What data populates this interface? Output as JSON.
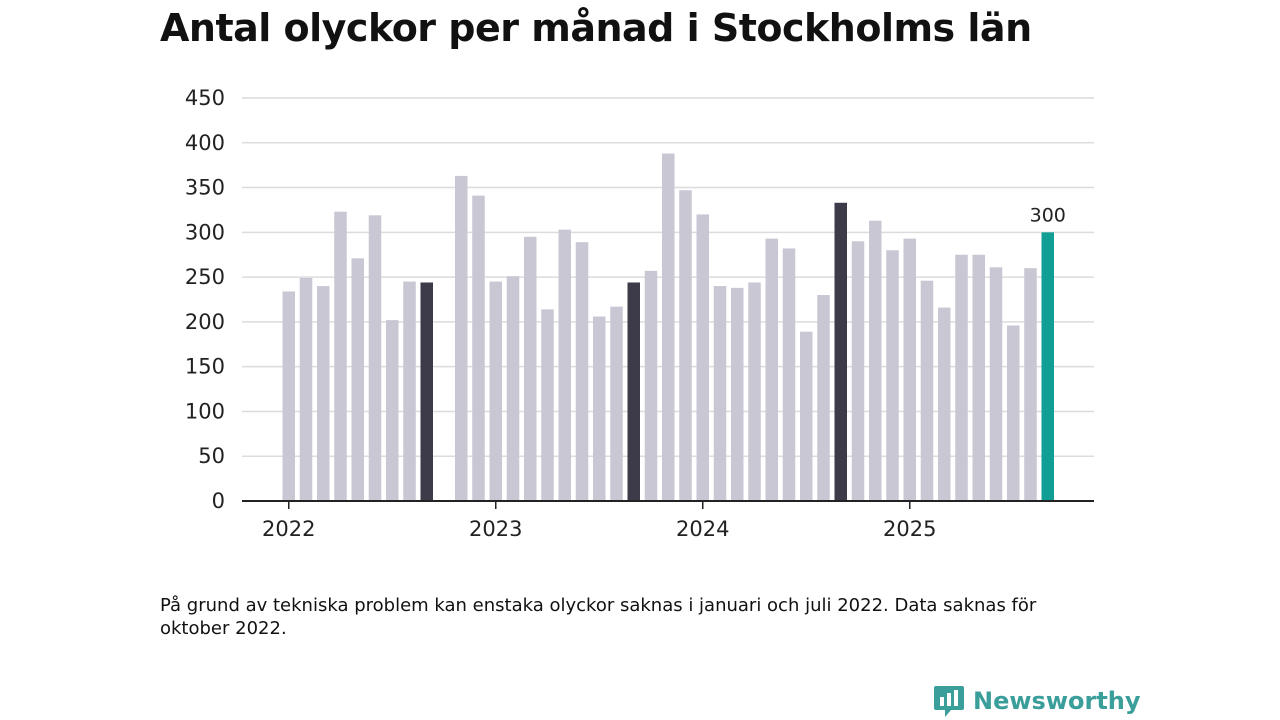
{
  "title": "Antal olyckor per månad i Stockholms län",
  "footnote": "På grund av tekniska problem kan enstaka olyckor saknas i januari och juli 2022. Data saknas för oktober 2022.",
  "brand": {
    "name": "Newsworthy",
    "icon": "newsworthy-logo-icon"
  },
  "colors": {
    "bar": "#c8c7d3",
    "highlight": "#3d3b49",
    "latest": "#119f95",
    "grid": "#dcdcdc",
    "axis": "#222222"
  },
  "chart_data": {
    "type": "bar",
    "title": "Antal olyckor per månad i Stockholms län",
    "xlabel": "",
    "ylabel": "",
    "ylim": [
      0,
      450
    ],
    "yticks": [
      0,
      50,
      100,
      150,
      200,
      250,
      300,
      350,
      400,
      450
    ],
    "grid": true,
    "x_tick_labels": [
      "2022",
      "2023",
      "2024",
      "2025"
    ],
    "start": "2022-01",
    "values": [
      234,
      249,
      240,
      323,
      271,
      319,
      202,
      245,
      244,
      null,
      363,
      341,
      245,
      251,
      295,
      214,
      303,
      289,
      206,
      217,
      244,
      257,
      388,
      347,
      320,
      240,
      238,
      244,
      293,
      282,
      189,
      230,
      333,
      290,
      313,
      280,
      293,
      246,
      216,
      275,
      275,
      261,
      196,
      260,
      300
    ],
    "highlighted_months": [
      "2022-09",
      "2023-09",
      "2024-09"
    ],
    "latest_month": "2025-09",
    "annotations": [
      {
        "month": "2025-09",
        "text": "300"
      }
    ]
  }
}
